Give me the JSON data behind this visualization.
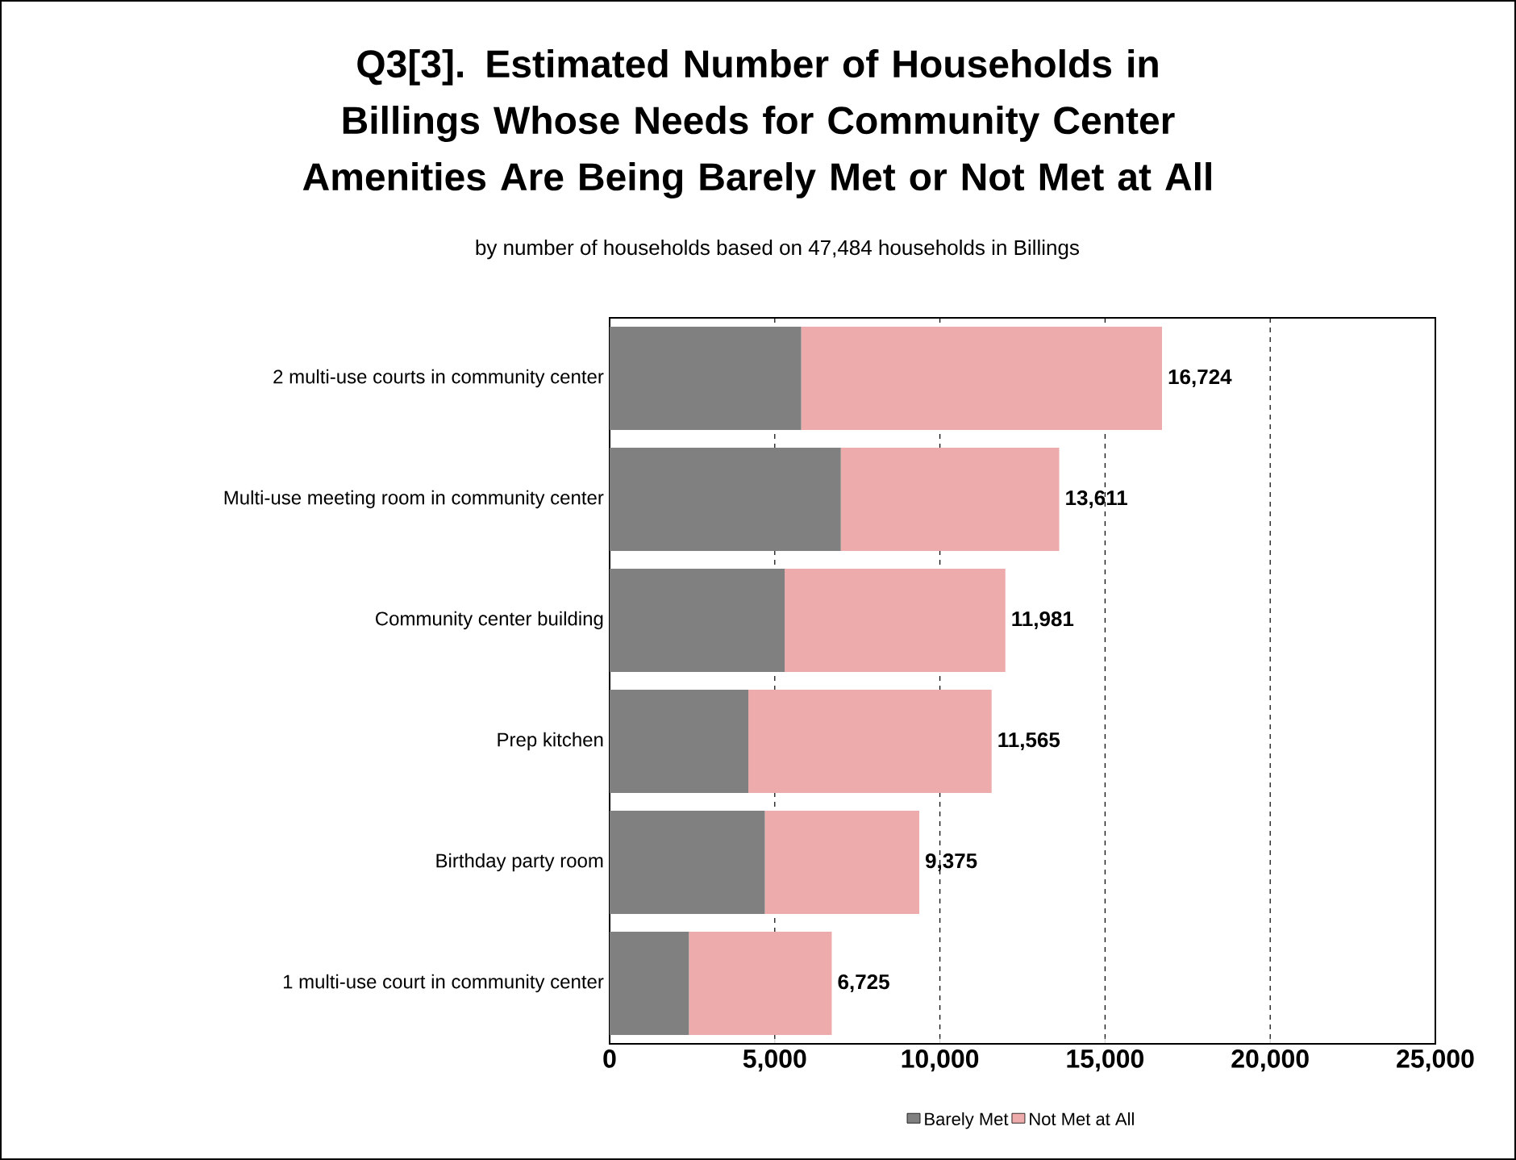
{
  "chart_data": {
    "type": "bar",
    "orientation": "horizontal",
    "stacked": true,
    "title": "Q3[3]. Estimated Number of Households in Billings Whose Needs for Community Center Amenities Are Being Barely Met or Not Met at All",
    "subtitle": "by number of households based on 47,484  households in Billings",
    "categories": [
      "2 multi-use courts in community center",
      "Multi-use meeting room in community center",
      "Community center building",
      "Prep kitchen",
      "Birthday party room",
      "1 multi-use court in community center"
    ],
    "series": [
      {
        "name": "Barely Met",
        "color": "#808080",
        "values": [
          5800,
          7000,
          5300,
          4200,
          4700,
          2400
        ]
      },
      {
        "name": "Not Met at All",
        "color": "#eeabab",
        "values": [
          10924,
          6611,
          6681,
          7365,
          4675,
          4325
        ]
      }
    ],
    "totals": [
      "16,724",
      "13,611",
      "11,981",
      "11,565",
      "9,375",
      "6,725"
    ],
    "xlim": [
      0,
      25000
    ],
    "xticks": [
      0,
      {
        "value": 5000,
        "label": "5,000"
      },
      {
        "value": 10000,
        "label": "10,000"
      },
      {
        "value": 15000,
        "label": "15,000"
      },
      {
        "value": 20000,
        "label": "20,000"
      },
      {
        "value": 25000,
        "label": "25,000"
      }
    ],
    "grid": "x",
    "legend": "bottom"
  }
}
